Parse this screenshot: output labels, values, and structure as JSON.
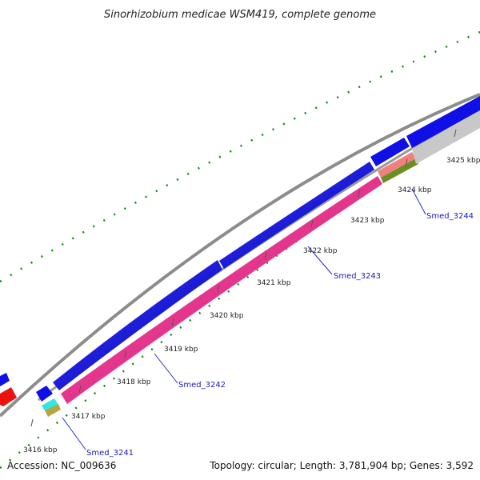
{
  "header": {
    "title": "Sinorhizobium medicae WSM419, complete genome"
  },
  "footer": {
    "accession": "Accession: NC_009636",
    "summary": "Topology: circular; Length: 3,781,904 bp; Genes: 3,592"
  },
  "ticks": [
    {
      "label": "3416 kbp"
    },
    {
      "label": "3417 kbp"
    },
    {
      "label": "3418 kbp"
    },
    {
      "label": "3419 kbp"
    },
    {
      "label": "3420 kbp"
    },
    {
      "label": "3421 kbp"
    },
    {
      "label": "3422 kbp"
    },
    {
      "label": "3423 kbp"
    },
    {
      "label": "3424 kbp"
    },
    {
      "label": "3425 kbp"
    }
  ],
  "genes": [
    {
      "label": "Smed_3241"
    },
    {
      "label": "Smed_3242"
    },
    {
      "label": "Smed_3243"
    },
    {
      "label": "Smed_3244"
    }
  ],
  "colors": {
    "backbone": "#8c8c8c",
    "cds_forward": "#1010e6",
    "cds_reverse": "#ee1111",
    "cog_pink": "#ee2a8a",
    "cog_salmon": "#f08080",
    "cog_olive": "#6b8e23",
    "cog_cyan": "#33e6e6",
    "cog_khaki": "#b5a642",
    "cog_gray": "#c8c8c8",
    "gc_dots": "#118811",
    "leader_line": "#2a2ad0"
  }
}
